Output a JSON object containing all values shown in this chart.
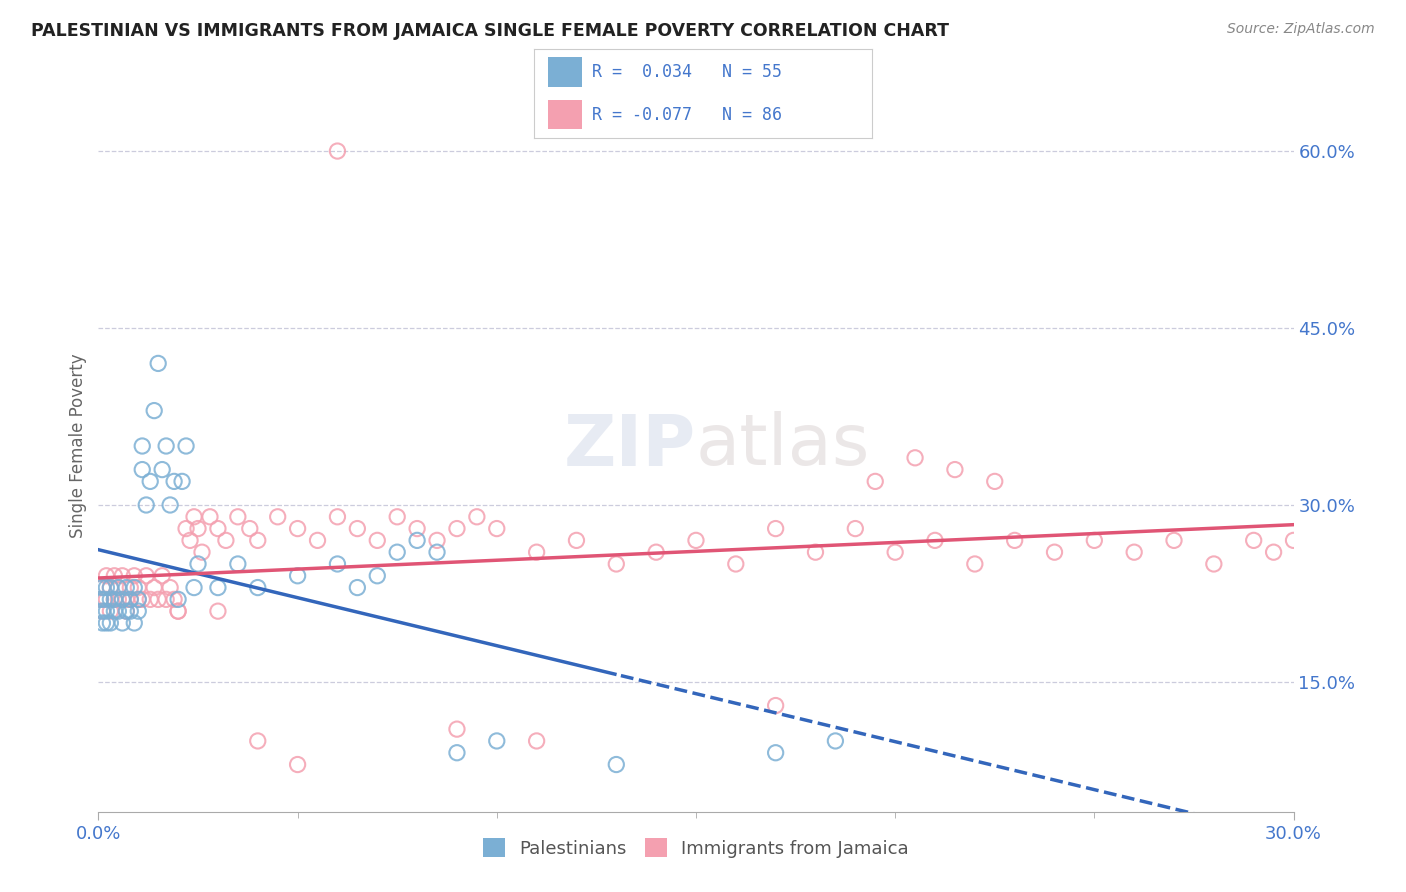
{
  "title": "PALESTINIAN VS IMMIGRANTS FROM JAMAICA SINGLE FEMALE POVERTY CORRELATION CHART",
  "source": "Source: ZipAtlas.com",
  "ylabel": "Single Female Poverty",
  "legend_labels": [
    "Palestinians",
    "Immigrants from Jamaica"
  ],
  "blue_color": "#7BAFD4",
  "pink_color": "#F4A0B0",
  "trend_blue": "#3366BB",
  "trend_pink": "#E05575",
  "axis_label_color": "#4477CC",
  "title_color": "#222222",
  "watermark_zip": "ZIP",
  "watermark_atlas": "atlas",
  "xmin": 0.0,
  "xmax": 0.3,
  "ymin": 0.04,
  "ymax": 0.66,
  "yticks": [
    0.15,
    0.3,
    0.45,
    0.6
  ],
  "xtick_positions": [
    0.0,
    0.3
  ],
  "xtick_labels": [
    "0.0%",
    "30.0%"
  ],
  "blue_x": [
    0.0005,
    0.001,
    0.001,
    0.001,
    0.0015,
    0.002,
    0.002,
    0.002,
    0.003,
    0.003,
    0.003,
    0.004,
    0.004,
    0.005,
    0.005,
    0.006,
    0.006,
    0.007,
    0.007,
    0.008,
    0.008,
    0.009,
    0.009,
    0.01,
    0.01,
    0.011,
    0.011,
    0.012,
    0.013,
    0.014,
    0.015,
    0.016,
    0.017,
    0.018,
    0.019,
    0.02,
    0.021,
    0.022,
    0.024,
    0.025,
    0.03,
    0.035,
    0.04,
    0.05,
    0.06,
    0.065,
    0.07,
    0.075,
    0.08,
    0.085,
    0.09,
    0.1,
    0.13,
    0.17,
    0.185
  ],
  "blue_y": [
    0.22,
    0.2,
    0.21,
    0.23,
    0.22,
    0.2,
    0.21,
    0.23,
    0.2,
    0.22,
    0.23,
    0.21,
    0.22,
    0.21,
    0.23,
    0.22,
    0.2,
    0.21,
    0.23,
    0.21,
    0.22,
    0.2,
    0.23,
    0.21,
    0.22,
    0.33,
    0.35,
    0.3,
    0.32,
    0.38,
    0.42,
    0.33,
    0.35,
    0.3,
    0.32,
    0.22,
    0.32,
    0.35,
    0.23,
    0.25,
    0.23,
    0.25,
    0.23,
    0.24,
    0.25,
    0.23,
    0.24,
    0.26,
    0.27,
    0.26,
    0.09,
    0.1,
    0.08,
    0.09,
    0.1
  ],
  "pink_x": [
    0.0005,
    0.001,
    0.001,
    0.002,
    0.002,
    0.003,
    0.003,
    0.004,
    0.004,
    0.005,
    0.005,
    0.006,
    0.006,
    0.007,
    0.007,
    0.008,
    0.008,
    0.009,
    0.01,
    0.01,
    0.011,
    0.012,
    0.013,
    0.014,
    0.015,
    0.016,
    0.017,
    0.018,
    0.019,
    0.02,
    0.022,
    0.023,
    0.024,
    0.025,
    0.026,
    0.028,
    0.03,
    0.032,
    0.035,
    0.038,
    0.04,
    0.045,
    0.05,
    0.055,
    0.06,
    0.065,
    0.07,
    0.075,
    0.08,
    0.085,
    0.09,
    0.095,
    0.1,
    0.11,
    0.12,
    0.13,
    0.14,
    0.15,
    0.16,
    0.17,
    0.18,
    0.19,
    0.2,
    0.21,
    0.22,
    0.23,
    0.24,
    0.25,
    0.26,
    0.27,
    0.28,
    0.29,
    0.295,
    0.3,
    0.215,
    0.225,
    0.195,
    0.205,
    0.17,
    0.11,
    0.09,
    0.06,
    0.05,
    0.04,
    0.03,
    0.02
  ],
  "pink_y": [
    0.22,
    0.23,
    0.21,
    0.22,
    0.24,
    0.23,
    0.21,
    0.22,
    0.24,
    0.22,
    0.23,
    0.22,
    0.24,
    0.22,
    0.21,
    0.23,
    0.22,
    0.24,
    0.22,
    0.23,
    0.22,
    0.24,
    0.22,
    0.23,
    0.22,
    0.24,
    0.22,
    0.23,
    0.22,
    0.21,
    0.28,
    0.27,
    0.29,
    0.28,
    0.26,
    0.29,
    0.28,
    0.27,
    0.29,
    0.28,
    0.27,
    0.29,
    0.28,
    0.27,
    0.29,
    0.28,
    0.27,
    0.29,
    0.28,
    0.27,
    0.28,
    0.29,
    0.28,
    0.26,
    0.27,
    0.25,
    0.26,
    0.27,
    0.25,
    0.28,
    0.26,
    0.28,
    0.26,
    0.27,
    0.25,
    0.27,
    0.26,
    0.27,
    0.26,
    0.27,
    0.25,
    0.27,
    0.26,
    0.27,
    0.33,
    0.32,
    0.32,
    0.34,
    0.13,
    0.1,
    0.11,
    0.6,
    0.08,
    0.1,
    0.21,
    0.21
  ]
}
